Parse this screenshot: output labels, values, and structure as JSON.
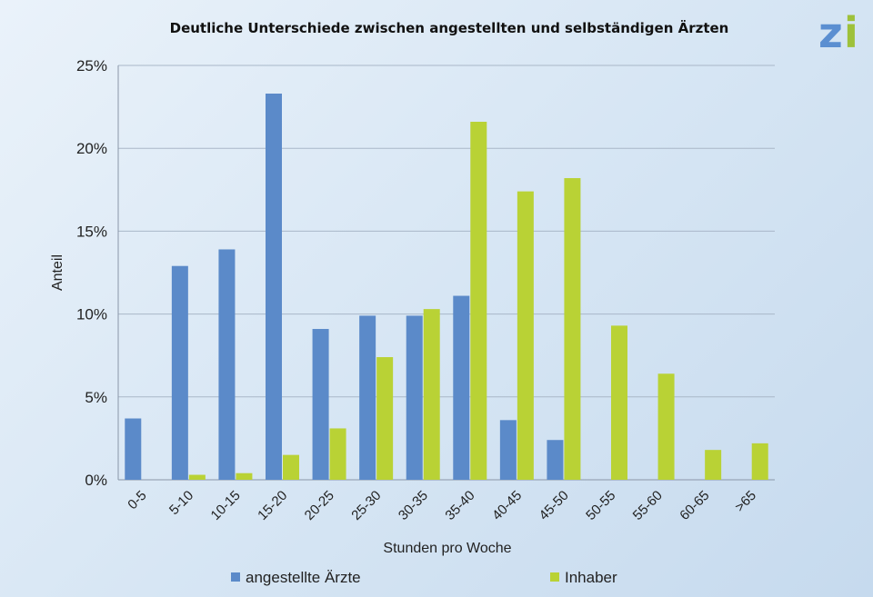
{
  "logo": {
    "z": "z",
    "i": "i"
  },
  "chart_data": {
    "type": "bar",
    "title": "Deutliche Unterschiede zwischen angestellten und selbständigen Ärzten",
    "xlabel": "Stunden pro Woche",
    "ylabel": "Anteil",
    "ylim": [
      0,
      25
    ],
    "yticks": [
      "0%",
      "5%",
      "10%",
      "15%",
      "20%",
      "25%"
    ],
    "categories": [
      "0-5",
      "5-10",
      "10-15",
      "15-20",
      "20-25",
      "25-30",
      "30-35",
      "35-40",
      "40-45",
      "45-50",
      "50-55",
      "55-60",
      "60-65",
      ">65"
    ],
    "series": [
      {
        "name": "angestellte Ärzte",
        "color": "#5b8ac9",
        "values": [
          3.7,
          12.9,
          13.9,
          23.3,
          9.1,
          9.9,
          9.9,
          11.1,
          3.6,
          2.4,
          0,
          0,
          0,
          0
        ]
      },
      {
        "name": "Inhaber",
        "color": "#b9d235",
        "values": [
          0,
          0.3,
          0.4,
          1.5,
          3.1,
          7.4,
          10.3,
          21.6,
          17.4,
          18.2,
          9.3,
          6.4,
          1.8,
          2.2
        ]
      }
    ],
    "grid": true,
    "legend": "bottom"
  }
}
